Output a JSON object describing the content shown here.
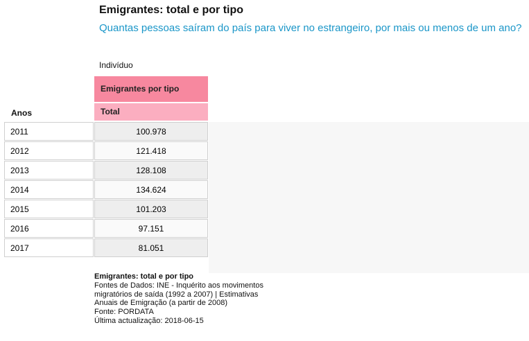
{
  "title": "Emigrantes: total e por tipo",
  "subtitle": "Quantas pessoas saíram do país para viver no estrangeiro, por mais ou menos de um ano?",
  "unit": "Indivíduo",
  "table": {
    "group_header": "Emigrantes por tipo",
    "column_header": "Total",
    "row_header": "Anos",
    "rows": [
      {
        "year": "2011",
        "value": "100.978"
      },
      {
        "year": "2012",
        "value": "121.418"
      },
      {
        "year": "2013",
        "value": "128.108"
      },
      {
        "year": "2014",
        "value": "134.624"
      },
      {
        "year": "2015",
        "value": "101.203"
      },
      {
        "year": "2016",
        "value": "97.151"
      },
      {
        "year": "2017",
        "value": "81.051"
      }
    ]
  },
  "footer": {
    "title": "Emigrantes: total e por tipo",
    "sources_line1": "Fontes de Dados: INE - Inquérito aos movimentos",
    "sources_line2": "migratórios de saída (1992 a 2007) | Estimativas",
    "sources_line3": "Anuais de Emigração (a partir de 2008)",
    "source": "Fonte: PORDATA",
    "updated": "Última actualização: 2018-06-15"
  }
}
